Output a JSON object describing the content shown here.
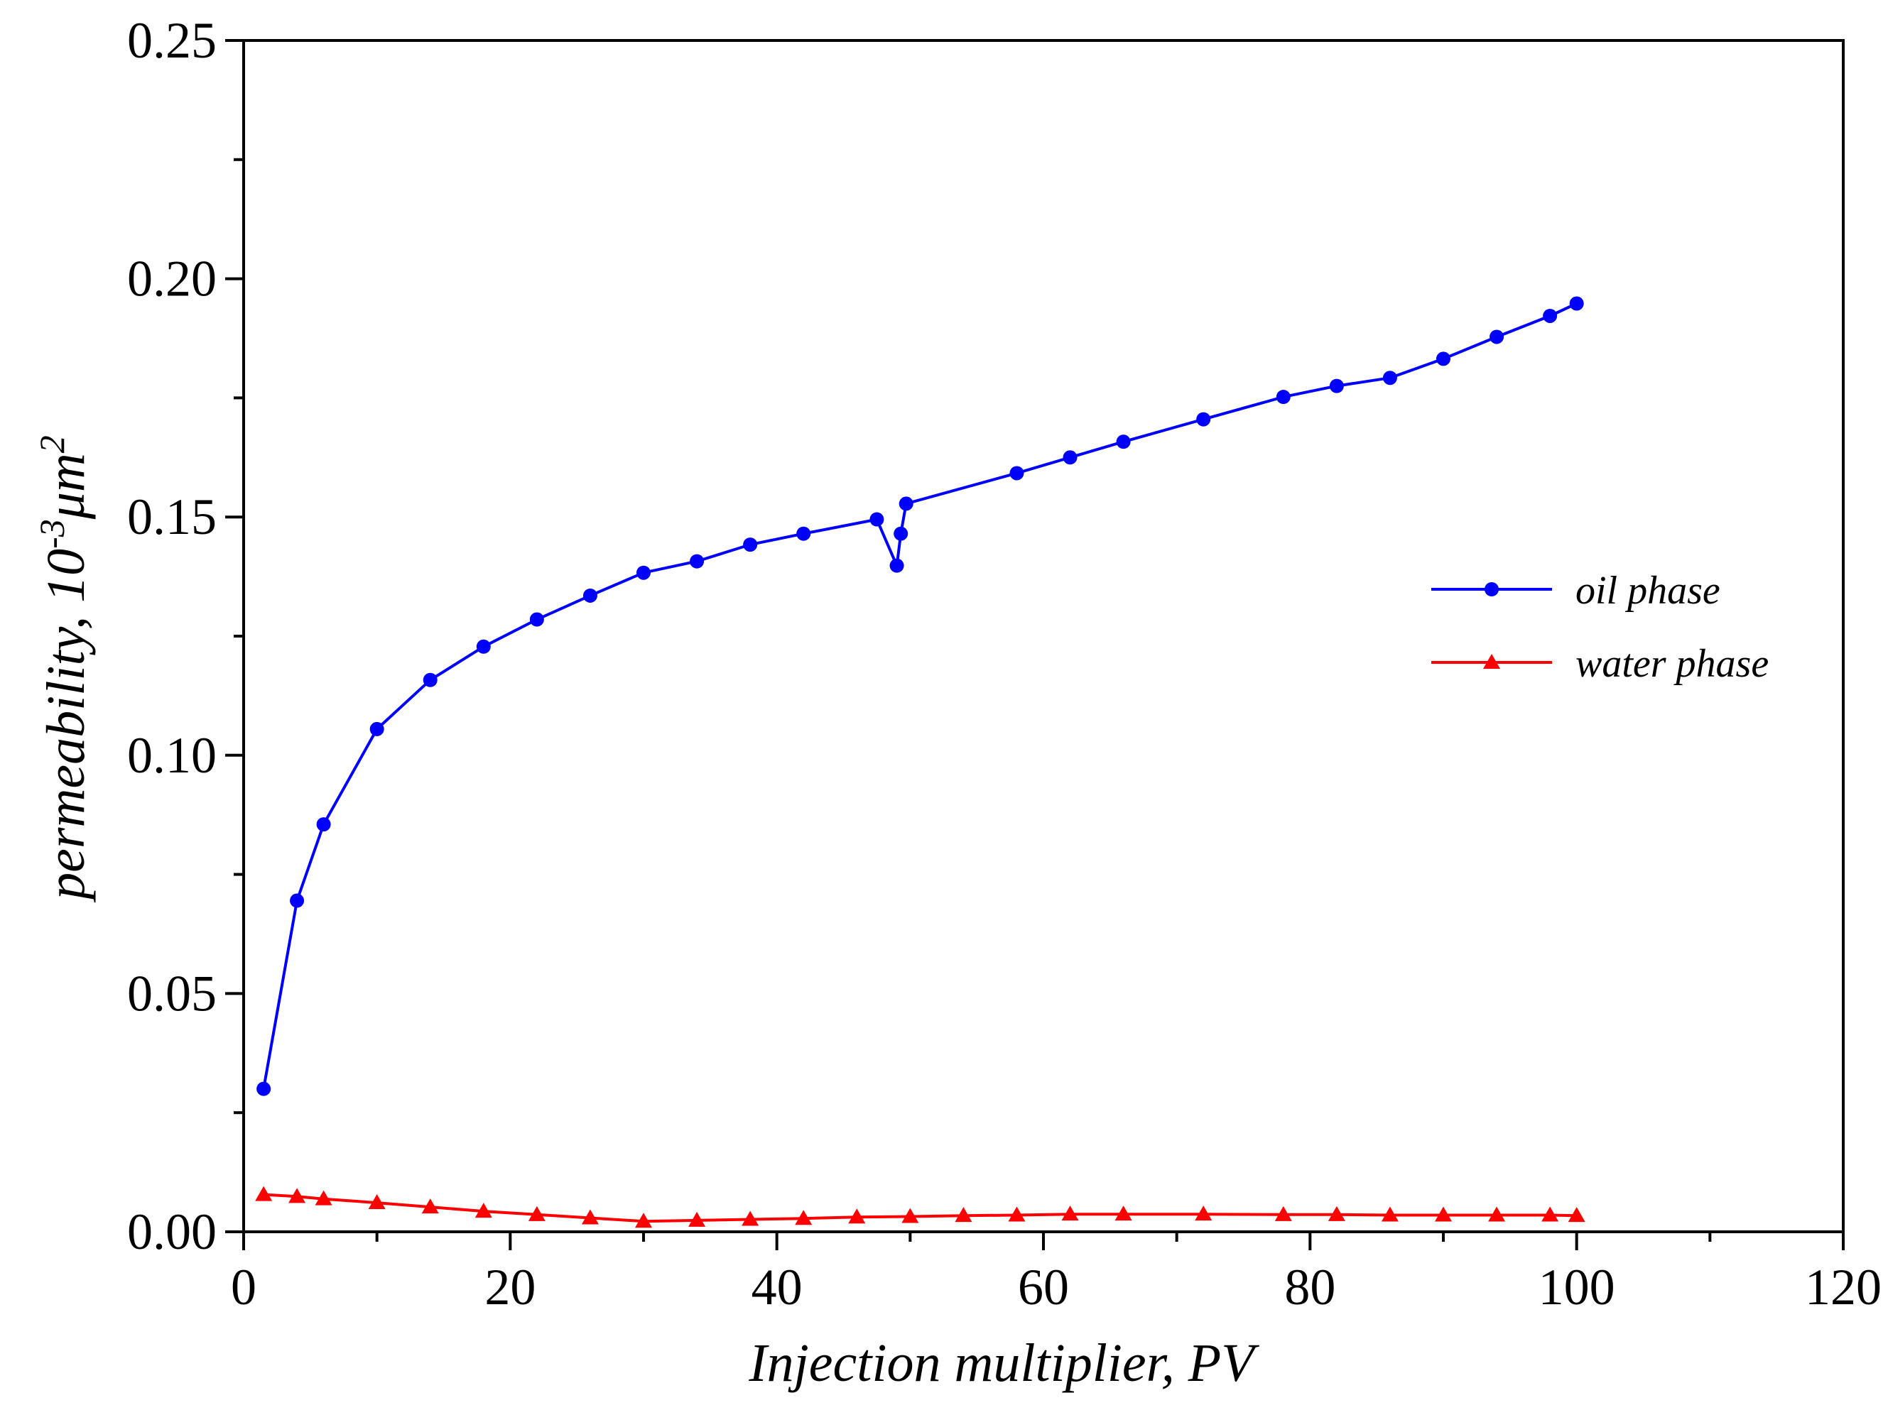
{
  "chart_data": {
    "type": "line",
    "title": "",
    "xlabel": "Injection multiplier, PV",
    "ylabel": {
      "prefix": "permeability, 10",
      "superscript1": "-3",
      "mid": "μm",
      "superscript2": "2"
    },
    "xlim": [
      0,
      120
    ],
    "ylim": [
      0,
      0.25
    ],
    "xticks": [
      0,
      20,
      40,
      60,
      80,
      100,
      120
    ],
    "xtick_labels": [
      "0",
      "20",
      "40",
      "60",
      "80",
      "100",
      "120"
    ],
    "yticks": [
      0,
      0.05,
      0.1,
      0.15,
      0.2,
      0.25
    ],
    "ytick_labels": [
      "0.00",
      "0.05",
      "0.10",
      "0.15",
      "0.20",
      "0.25"
    ],
    "legend_position": "right",
    "series": [
      {
        "name": "oil phase",
        "color": "#0000ff",
        "marker": "circle",
        "x": [
          1.5,
          4,
          6,
          10,
          14,
          18,
          22,
          26,
          30,
          34,
          38,
          42,
          47.5,
          49,
          49.3,
          49.7,
          58,
          62,
          66,
          72,
          78,
          82,
          86,
          90,
          94,
          98,
          100
        ],
        "y": [
          0.03,
          0.0695,
          0.0855,
          0.1055,
          0.1158,
          0.1228,
          0.1285,
          0.1335,
          0.1383,
          0.1407,
          0.1442,
          0.1465,
          0.1495,
          0.1398,
          0.1465,
          0.1528,
          0.1592,
          0.1625,
          0.1658,
          0.1705,
          0.1752,
          0.1775,
          0.1792,
          0.1832,
          0.1878,
          0.1922,
          0.1948
        ]
      },
      {
        "name": "water phase",
        "color": "#ff0000",
        "marker": "triangle",
        "x": [
          1.5,
          4,
          6,
          10,
          14,
          18,
          22,
          26,
          30,
          34,
          38,
          42,
          46,
          50,
          54,
          58,
          62,
          66,
          72,
          78,
          82,
          86,
          90,
          94,
          98,
          100
        ],
        "y": [
          0.0078,
          0.0074,
          0.0069,
          0.0061,
          0.0052,
          0.0043,
          0.0036,
          0.0029,
          0.0022,
          0.0024,
          0.0026,
          0.0028,
          0.0031,
          0.0032,
          0.0034,
          0.0035,
          0.0037,
          0.0037,
          0.0037,
          0.0036,
          0.0036,
          0.0035,
          0.0035,
          0.0035,
          0.0035,
          0.0034
        ]
      }
    ]
  }
}
